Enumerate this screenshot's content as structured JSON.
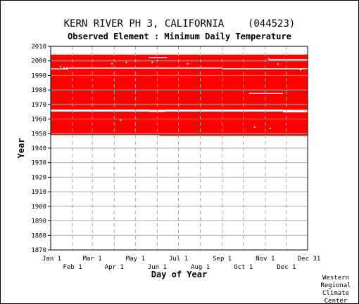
{
  "chart_data": {
    "type": "heatmap",
    "title": "KERN RIVER PH 3, CALIFORNIA    (044523)",
    "subtitle": "Observed Element : Minimum Daily Temperature",
    "xlabel": "Day of Year",
    "ylabel": "Year",
    "xlim": [
      1,
      365
    ],
    "ylim": [
      1870,
      2010
    ],
    "y_ticks": [
      1870,
      1880,
      1890,
      1900,
      1910,
      1920,
      1930,
      1940,
      1950,
      1960,
      1970,
      1980,
      1990,
      2000,
      2010
    ],
    "x_ticks_top_row": [
      {
        "label": "Jan 1",
        "day": 1
      },
      {
        "label": "Mar 1",
        "day": 60
      },
      {
        "label": "May 1",
        "day": 121
      },
      {
        "label": "Jul 1",
        "day": 182
      },
      {
        "label": "Sep 1",
        "day": 244
      },
      {
        "label": "Nov 1",
        "day": 305
      },
      {
        "label": "Dec 31",
        "day": 365
      }
    ],
    "x_ticks_bottom_row": [
      {
        "label": "Feb 1",
        "day": 32
      },
      {
        "label": "Apr 1",
        "day": 91
      },
      {
        "label": "Jun 1",
        "day": 152
      },
      {
        "label": "Aug 1",
        "day": 213
      },
      {
        "label": "Oct 1",
        "day": 274
      },
      {
        "label": "Dec 1",
        "day": 335
      }
    ],
    "grid": true,
    "observed_color": "#ff0000",
    "missing_color": "#ffffff",
    "observed_blocks": [
      {
        "start_day": 1,
        "end_day": 365,
        "start_year": 1948.5,
        "end_year": 1965.2
      },
      {
        "start_day": 1,
        "end_day": 365,
        "start_year": 1966.4,
        "end_year": 2005.0
      }
    ],
    "missing_segments": [
      {
        "year": 1948.5,
        "start_day": 1,
        "end_day": 155,
        "height_years": 1.0
      },
      {
        "year": 1965.2,
        "start_day": 330,
        "end_day": 365,
        "height_years": 1.2
      },
      {
        "year": 1966.4,
        "start_day": 1,
        "end_day": 140,
        "height_years": 0.3
      },
      {
        "year": 1966.4,
        "start_day": 163,
        "end_day": 330,
        "height_years": 0.3
      },
      {
        "year": 1965.5,
        "start_day": 140,
        "end_day": 163,
        "height_years": 1.2
      },
      {
        "year": 1977.6,
        "start_day": 282,
        "end_day": 330,
        "height_years": 0.6
      },
      {
        "year": 1994.6,
        "start_day": 1,
        "end_day": 26,
        "height_years": 0.6
      },
      {
        "year": 1994.6,
        "start_day": 244,
        "end_day": 365,
        "height_years": 0.8
      },
      {
        "year": 1995.2,
        "start_day": 26,
        "end_day": 244,
        "height_years": 0.4
      },
      {
        "year": 2001.0,
        "start_day": 310,
        "end_day": 365,
        "height_years": 0.4
      },
      {
        "year": 2002.5,
        "start_day": 140,
        "end_day": 166,
        "height_years": 0.4
      },
      {
        "year": 2005.0,
        "start_day": 1,
        "end_day": 365,
        "height_years": 0.1
      }
    ],
    "missing_dots": [
      {
        "day": 20,
        "year": 1995.2
      },
      {
        "day": 24,
        "year": 1995.2
      },
      {
        "day": 15,
        "year": 1996.0
      },
      {
        "day": 88,
        "year": 1998.0
      },
      {
        "day": 108,
        "year": 1999.0
      },
      {
        "day": 145,
        "year": 1999.0
      },
      {
        "day": 195,
        "year": 1998.0
      },
      {
        "day": 310,
        "year": 2001.4
      },
      {
        "day": 323,
        "year": 1997.8
      },
      {
        "day": 355,
        "year": 1993.8
      },
      {
        "day": 100,
        "year": 1959.5
      },
      {
        "day": 290,
        "year": 1954.4
      },
      {
        "day": 312,
        "year": 1953.6
      }
    ]
  },
  "credit": [
    "Western",
    "Regional",
    "Climate",
    "Center"
  ]
}
